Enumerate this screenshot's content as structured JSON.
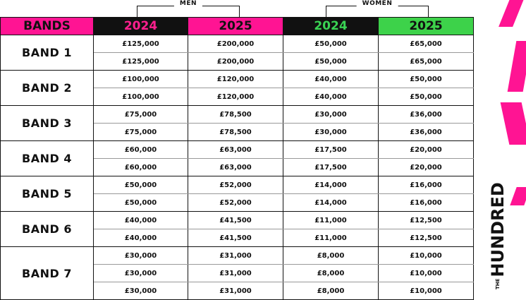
{
  "groups": {
    "men_label": "MEN",
    "women_label": "WOMEN"
  },
  "header": {
    "bands": "BANDS",
    "men_2024": "2024",
    "men_2025": "2025",
    "women_2024": "2024",
    "women_2025": "2025"
  },
  "bands": [
    {
      "name": "BAND 1",
      "rows": [
        {
          "men_2024": "£125,000",
          "men_2025": "£200,000",
          "women_2024": "£50,000",
          "women_2025": "£65,000"
        },
        {
          "men_2024": "£125,000",
          "men_2025": "£200,000",
          "women_2024": "£50,000",
          "women_2025": "£65,000"
        }
      ]
    },
    {
      "name": "BAND 2",
      "rows": [
        {
          "men_2024": "£100,000",
          "men_2025": "£120,000",
          "women_2024": "£40,000",
          "women_2025": "£50,000"
        },
        {
          "men_2024": "£100,000",
          "men_2025": "£120,000",
          "women_2024": "£40,000",
          "women_2025": "£50,000"
        }
      ]
    },
    {
      "name": "BAND 3",
      "rows": [
        {
          "men_2024": "£75,000",
          "men_2025": "£78,500",
          "women_2024": "£30,000",
          "women_2025": "£36,000"
        },
        {
          "men_2024": "£75,000",
          "men_2025": "£78,500",
          "women_2024": "£30,000",
          "women_2025": "£36,000"
        }
      ]
    },
    {
      "name": "BAND 4",
      "rows": [
        {
          "men_2024": "£60,000",
          "men_2025": "£63,000",
          "women_2024": "£17,500",
          "women_2025": "£20,000"
        },
        {
          "men_2024": "£60,000",
          "men_2025": "£63,000",
          "women_2024": "£17,500",
          "women_2025": "£20,000"
        }
      ]
    },
    {
      "name": "BAND 5",
      "rows": [
        {
          "men_2024": "£50,000",
          "men_2025": "£52,000",
          "women_2024": "£14,000",
          "women_2025": "£16,000"
        },
        {
          "men_2024": "£50,000",
          "men_2025": "£52,000",
          "women_2024": "£14,000",
          "women_2025": "£16,000"
        }
      ]
    },
    {
      "name": "BAND 6",
      "rows": [
        {
          "men_2024": "£40,000",
          "men_2025": "£41,500",
          "women_2024": "£11,000",
          "women_2025": "£12,500"
        },
        {
          "men_2024": "£40,000",
          "men_2025": "£41,500",
          "women_2024": "£11,000",
          "women_2025": "£12,500"
        }
      ]
    },
    {
      "name": "BAND 7",
      "rows": [
        {
          "men_2024": "£30,000",
          "men_2025": "£31,000",
          "women_2024": "£8,000",
          "women_2025": "£10,000"
        },
        {
          "men_2024": "£30,000",
          "men_2025": "£31,000",
          "women_2024": "£8,000",
          "women_2025": "£10,000"
        },
        {
          "men_2024": "£30,000",
          "men_2025": "£31,000",
          "women_2024": "£8,000",
          "women_2025": "£10,000"
        }
      ]
    }
  ],
  "logo": {
    "small": "THE",
    "main": "HUNDRED"
  },
  "colors": {
    "pink": "#ff1493",
    "green": "#3dd24a",
    "black": "#111111"
  }
}
